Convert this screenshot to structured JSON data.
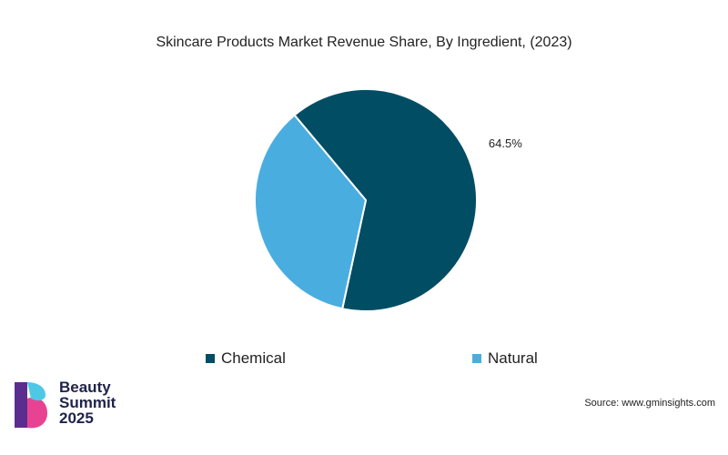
{
  "chart_data": {
    "type": "pie",
    "title": "Skincare Products Market Revenue Share, By Ingredient, (2023)",
    "slices": [
      {
        "name": "Chemical",
        "value": 64.5,
        "color": "#004d64",
        "label": "64.5%"
      },
      {
        "name": "Natural",
        "value": 35.5,
        "color": "#4aade0",
        "label": ""
      }
    ],
    "legend": [
      "Chemical",
      "Natural"
    ],
    "legend_position": "bottom"
  },
  "branding": {
    "logo_lines": [
      "Beauty",
      "Summit",
      "2025"
    ],
    "logo_colors": [
      "#5b2d8e",
      "#e84393",
      "#4dc9e6"
    ]
  },
  "source": "Source: www.gminsights.com"
}
